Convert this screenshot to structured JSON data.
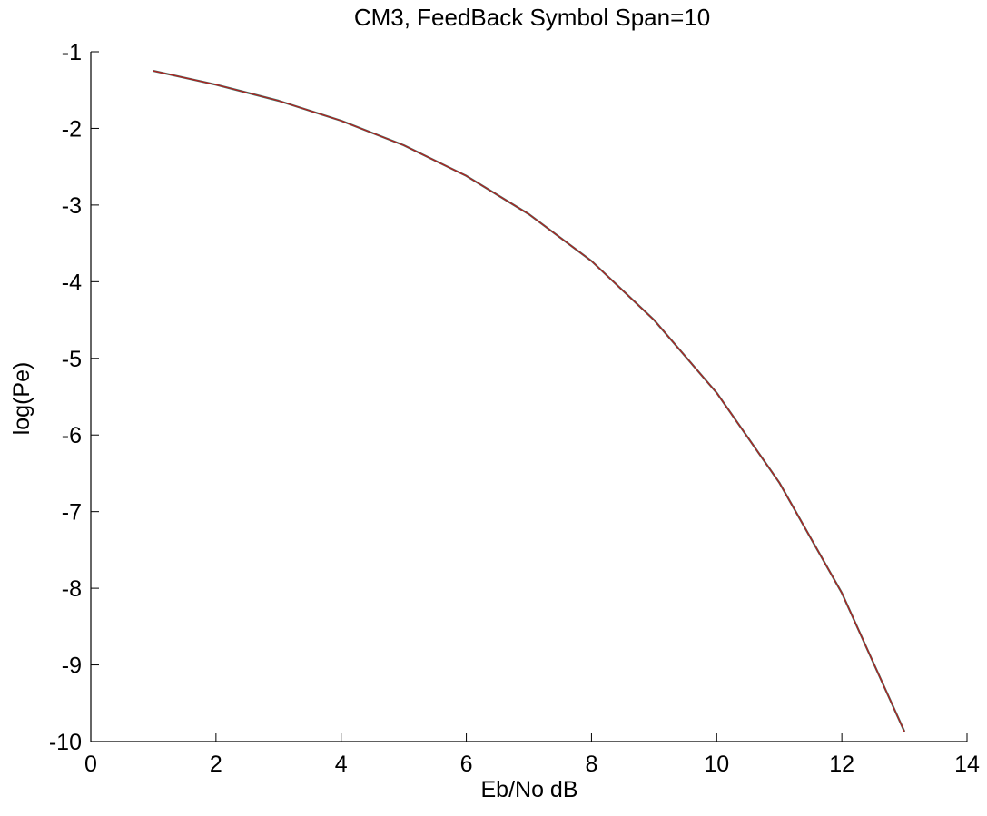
{
  "chart_data": {
    "type": "line",
    "title": "CM3, FeedBack Symbol Span=10",
    "xlabel": "Eb/No dB",
    "ylabel": "log(Pe)",
    "xlim": [
      0,
      14
    ],
    "ylim": [
      -10,
      -1
    ],
    "xticks": [
      "0",
      "2",
      "4",
      "6",
      "8",
      "10",
      "12",
      "14"
    ],
    "yticks": [
      "-1",
      "-2",
      "-3",
      "-4",
      "-5",
      "-6",
      "-7",
      "-8",
      "-9",
      "-10"
    ],
    "grid": false,
    "box": "left-bottom axes only",
    "series": [
      {
        "color": "#2e7d6e",
        "x": [
          1,
          2,
          3,
          4,
          5,
          6,
          7,
          8,
          9,
          10,
          11,
          12,
          13
        ],
        "y": [
          -1.25,
          -1.43,
          -1.64,
          -1.9,
          -2.22,
          -2.62,
          -3.12,
          -3.73,
          -4.5,
          -5.45,
          -6.62,
          -8.06,
          -9.87
        ]
      },
      {
        "color": "#b22222",
        "x": [
          1,
          2,
          3,
          4,
          5,
          6,
          7,
          8,
          9,
          10,
          11,
          12,
          13
        ],
        "y": [
          -1.25,
          -1.43,
          -1.64,
          -1.9,
          -2.22,
          -2.62,
          -3.12,
          -3.73,
          -4.5,
          -5.45,
          -6.62,
          -8.06,
          -9.87
        ]
      }
    ]
  }
}
